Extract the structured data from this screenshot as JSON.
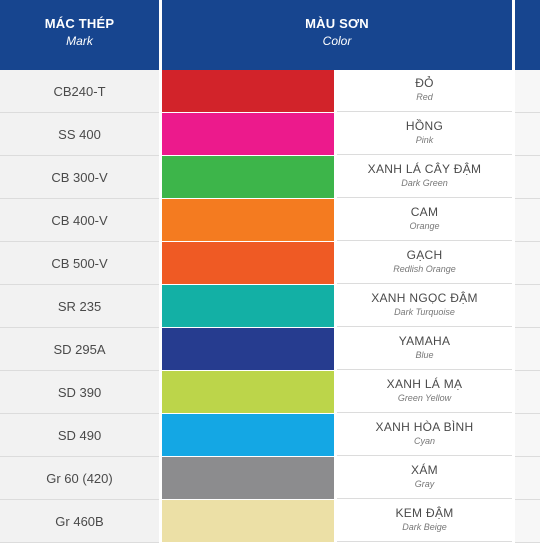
{
  "header": {
    "mark_label": "MÁC THÉP",
    "mark_sub": "Mark",
    "color_label": "MÀU SƠN",
    "color_sub": "Color"
  },
  "rows": [
    {
      "mark": "CB240-T",
      "name_vn": "ĐỎ",
      "name_en": "Red",
      "color": "#d2232a"
    },
    {
      "mark": "SS 400",
      "name_vn": "HỒNG",
      "name_en": "Pink",
      "color": "#ec1a8c"
    },
    {
      "mark": "CB 300-V",
      "name_vn": "XANH LÁ CÂY ĐẬM",
      "name_en": "Dark Green",
      "color": "#3db54a"
    },
    {
      "mark": "CB 400-V",
      "name_vn": "CAM",
      "name_en": "Orange",
      "color": "#f47b20"
    },
    {
      "mark": "CB 500-V",
      "name_vn": "GẠCH",
      "name_en": "Redlish Orange",
      "color": "#ef5a24"
    },
    {
      "mark": "SR 235",
      "name_vn": "XANH NGỌC ĐẬM",
      "name_en": "Dark Turquoise",
      "color": "#13b0a5"
    },
    {
      "mark": "SD 295A",
      "name_vn": "YAMAHA",
      "name_en": "Blue",
      "color": "#263c8f"
    },
    {
      "mark": "SD 390",
      "name_vn": "XANH LÁ MẠ",
      "name_en": "Green Yellow",
      "color": "#bcd54a"
    },
    {
      "mark": "SD 490",
      "name_vn": "XANH HÒA BÌNH",
      "name_en": "Cyan",
      "color": "#14a7e4"
    },
    {
      "mark": "Gr 60 (420)",
      "name_vn": "XÁM",
      "name_en": "Gray",
      "color": "#8c8c8e"
    },
    {
      "mark": "Gr 460B",
      "name_vn": "KEM ĐẬM",
      "name_en": "Dark Beige",
      "color": "#ece0a6"
    }
  ]
}
